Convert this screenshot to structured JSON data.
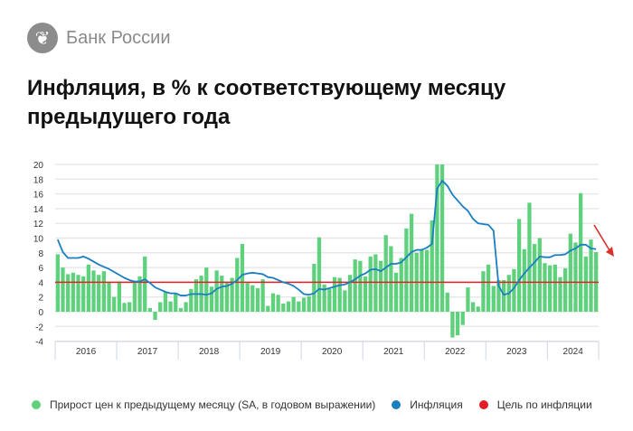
{
  "header": {
    "brand": "Банк России",
    "logo_icon": "double-headed-eagle-icon"
  },
  "title": "Инфляция, в % к соответствующему месяцу предыдущего года",
  "legend": [
    {
      "label": "Прирост цен к предыдущему месяцу (SA, в годовом выражении)",
      "color": "#5fd17c"
    },
    {
      "label": "Инфляция",
      "color": "#1a7fc1"
    },
    {
      "label": "Цель по инфляции",
      "color": "#e31e24"
    }
  ],
  "chart_data": {
    "type": "bar",
    "title": "Инфляция, в % к соответствующему месяцу предыдущего года",
    "x_period": "monthly, Jan 2016 – Oct 2024",
    "year_labels": [
      "2016",
      "2017",
      "2018",
      "2019",
      "2020",
      "2021",
      "2022",
      "2023",
      "2024"
    ],
    "ylim": [
      -4,
      20
    ],
    "yticks": [
      -4,
      -2,
      0,
      2,
      4,
      6,
      8,
      10,
      12,
      14,
      16,
      18,
      20
    ],
    "grid": true,
    "legend_position": "bottom",
    "target": 4,
    "series": [
      {
        "name": "Прирост цен к предыдущему месяцу (SA, в годовом выражении)",
        "type": "bar",
        "color": "#5fd17c",
        "values": [
          7.8,
          6.0,
          5.1,
          5.3,
          5.0,
          4.8,
          6.4,
          5.6,
          5.0,
          5.5,
          4.0,
          2.0,
          4.1,
          1.2,
          1.3,
          4.0,
          4.8,
          7.5,
          0.5,
          -1.1,
          1.3,
          2.7,
          1.4,
          2.4,
          0.5,
          1.3,
          3.1,
          4.4,
          4.9,
          6.0,
          3.4,
          5.6,
          4.9,
          4.1,
          4.6,
          7.3,
          9.2,
          3.9,
          3.6,
          3.2,
          4.4,
          0.8,
          2.5,
          2.3,
          1.1,
          1.4,
          2.0,
          1.4,
          1.9,
          2.1,
          6.5,
          10.1,
          3.7,
          3.1,
          4.7,
          4.6,
          2.9,
          5.0,
          7.1,
          6.9,
          4.8,
          7.5,
          7.8,
          6.9,
          10.4,
          8.9,
          5.3,
          7.3,
          11.3,
          13.3,
          8.0,
          8.4,
          8.4,
          12.4,
          20,
          20,
          2.6,
          -3.5,
          -3.2,
          -1.8,
          3.3,
          1.3,
          0.7,
          5.5,
          6.4,
          3.5,
          4.3,
          4.3,
          5.0,
          5.8,
          12.6,
          8.5,
          14.8,
          9.2,
          10.0,
          6.6,
          6.3,
          6.4,
          4.7,
          5.9,
          10.6,
          9.4,
          16.1,
          7.5,
          9.8,
          8.1
        ]
      },
      {
        "name": "Инфляция",
        "type": "line",
        "color": "#1a7fc1",
        "values": [
          9.8,
          8.1,
          7.3,
          7.3,
          7.3,
          7.5,
          7.2,
          6.8,
          6.4,
          6.1,
          5.8,
          5.4,
          5.0,
          4.6,
          4.3,
          4.1,
          4.1,
          4.4,
          3.9,
          3.3,
          3.0,
          2.7,
          2.5,
          2.5,
          2.2,
          2.2,
          2.4,
          2.4,
          2.4,
          2.3,
          2.5,
          3.1,
          3.4,
          3.5,
          3.8,
          4.3,
          5.0,
          5.2,
          5.3,
          5.2,
          5.1,
          4.7,
          4.6,
          4.3,
          4.0,
          3.8,
          3.5,
          3.0,
          2.4,
          2.3,
          2.5,
          3.1,
          3.0,
          3.2,
          3.4,
          3.6,
          3.7,
          4.0,
          4.4,
          4.9,
          5.2,
          5.7,
          5.8,
          5.5,
          6.0,
          6.5,
          6.5,
          6.7,
          7.4,
          8.1,
          8.4,
          8.4,
          8.7,
          9.2,
          16.7,
          17.8,
          17.1,
          15.9,
          15.1,
          14.3,
          13.7,
          12.6,
          12.0,
          11.9,
          11.8,
          11.0,
          3.5,
          2.3,
          2.5,
          3.2,
          4.3,
          5.2,
          6.0,
          6.7,
          7.5,
          7.4,
          7.4,
          7.7,
          7.7,
          7.8,
          8.3,
          8.6,
          9.1,
          9.1,
          8.6,
          8.5
        ]
      },
      {
        "name": "Цель по инфляции",
        "type": "line",
        "color": "#e31e24",
        "value": 4
      }
    ],
    "annotation": {
      "type": "arrow",
      "direction": "down-right",
      "color": "#d9302a"
    }
  }
}
